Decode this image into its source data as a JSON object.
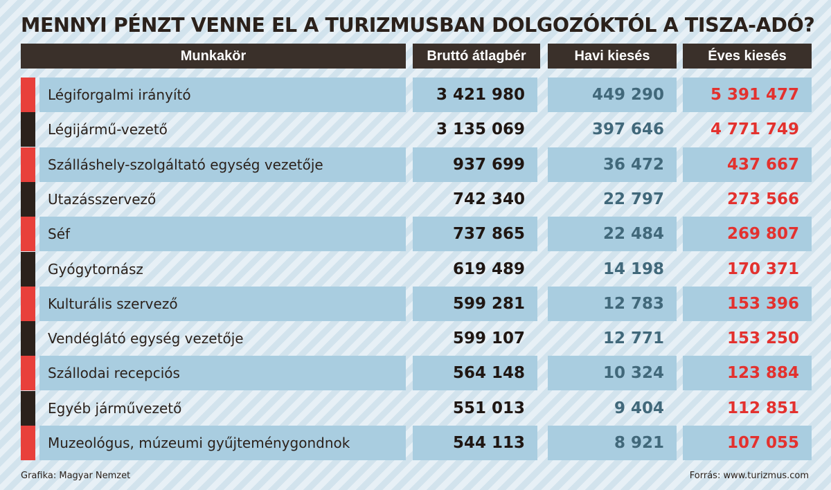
{
  "title": "MENNYI PÉNZT VENNE EL A TURIZMUSBAN DOLGOZÓKTÓL A TISZA-ADÓ?",
  "colors": {
    "header_bg": "#3a302a",
    "marker_red": "#e8403b",
    "marker_dark": "#2b211b",
    "shade": "#a9cde0",
    "havi": "#41687a",
    "eves": "#e3312e"
  },
  "chart_data": {
    "type": "table",
    "columns": [
      "Munkakör",
      "Bruttó átlagbér",
      "Havi kiesés",
      "Éves kiesés"
    ],
    "rows": [
      {
        "munkakor": "Légiforgalmi irányító",
        "brutto": "3 421 980",
        "havi": "449 290",
        "eves": "5 391 477"
      },
      {
        "munkakor": "Légijármű-vezető",
        "brutto": "3 135 069",
        "havi": "397 646",
        "eves": "4 771 749"
      },
      {
        "munkakor": "Szálláshely-szolgáltató egység vezetője",
        "brutto": "937 699",
        "havi": "36 472",
        "eves": "437 667"
      },
      {
        "munkakor": "Utazásszervező",
        "brutto": "742 340",
        "havi": "22 797",
        "eves": "273 566"
      },
      {
        "munkakor": "Séf",
        "brutto": "737 865",
        "havi": "22 484",
        "eves": "269 807"
      },
      {
        "munkakor": "Gyógytornász",
        "brutto": "619 489",
        "havi": "14 198",
        "eves": "170 371"
      },
      {
        "munkakor": "Kulturális szervező",
        "brutto": "599 281",
        "havi": "12 783",
        "eves": "153 396"
      },
      {
        "munkakor": "Vendéglátó egység vezetője",
        "brutto": "599 107",
        "havi": "12 771",
        "eves": "153 250"
      },
      {
        "munkakor": "Szállodai recepciós",
        "brutto": "564 148",
        "havi": "10 324",
        "eves": "123 884"
      },
      {
        "munkakor": "Egyéb járművezető",
        "brutto": "551 013",
        "havi": "9 404",
        "eves": "112 851"
      },
      {
        "munkakor": "Muzeológus, múzeumi gyűjteménygondnok",
        "brutto": "544 113",
        "havi": "8 921",
        "eves": "107 055"
      }
    ]
  },
  "footer": {
    "credit": "Grafika: Magyar Nemzet",
    "source": "Forrás: www.turizmus.com"
  }
}
